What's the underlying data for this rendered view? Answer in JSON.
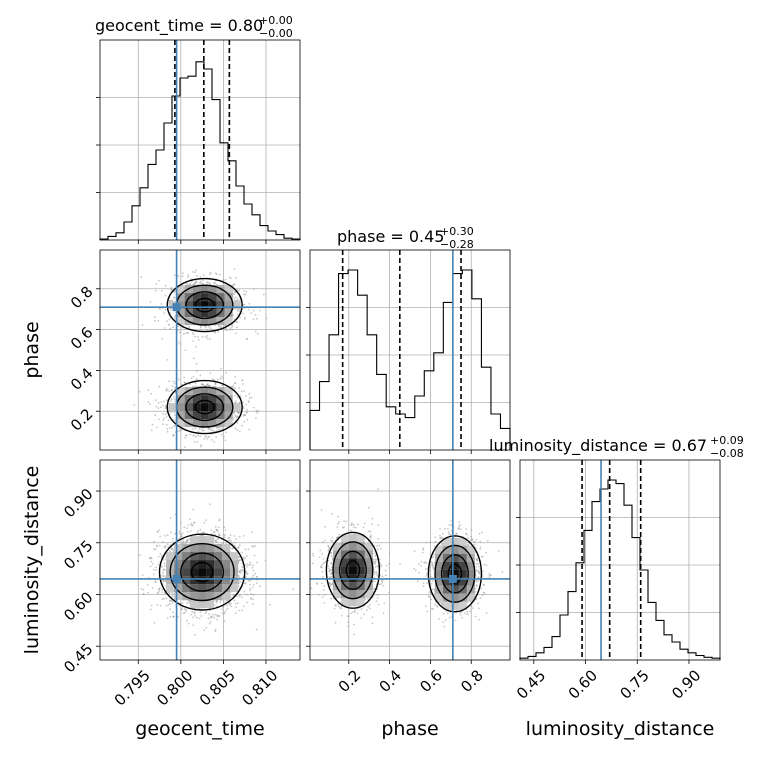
{
  "chart_data": {
    "type": "corner",
    "parameters": [
      "geocent_time",
      "phase",
      "luminosity_distance"
    ],
    "truth": {
      "geocent_time": 0.7995,
      "phase": 0.71,
      "luminosity_distance": 0.645
    },
    "titles": [
      {
        "param": "geocent_time",
        "text": "geocent_time = 0.80",
        "sup": "+0.00",
        "sub": "−0.00"
      },
      {
        "param": "phase",
        "text": "phase = 0.45",
        "sup": "+0.30",
        "sub": "−0.28"
      },
      {
        "param": "luminosity_distance",
        "text": "luminosity_distance = 0.67",
        "sup": "+0.09",
        "sub": "−0.08"
      }
    ],
    "axes": {
      "geocent_time": {
        "range": [
          0.7905,
          0.814
        ],
        "ticks": [
          0.795,
          0.8,
          0.805,
          0.81
        ],
        "tick_labels": [
          "0.795",
          "0.800",
          "0.805",
          "0.810"
        ]
      },
      "phase": {
        "range": [
          0.01,
          0.99
        ],
        "ticks": [
          0.2,
          0.4,
          0.6,
          0.8
        ],
        "tick_labels": [
          "0.2",
          "0.4",
          "0.6",
          "0.8"
        ]
      },
      "luminosity_distance": {
        "range": [
          0.41,
          0.99
        ],
        "ticks": [
          0.45,
          0.6,
          0.75,
          0.9
        ],
        "tick_labels": [
          "0.45",
          "0.60",
          "0.75",
          "0.90"
        ]
      }
    },
    "quantiles": {
      "geocent_time": [
        0.7993,
        0.8027,
        0.8057
      ],
      "phase": [
        0.17,
        0.45,
        0.75
      ],
      "luminosity_distance": [
        0.59,
        0.67,
        0.76
      ]
    },
    "histograms": {
      "geocent_time": [
        0.005,
        0.02,
        0.04,
        0.1,
        0.19,
        0.29,
        0.42,
        0.5,
        0.65,
        0.8,
        0.9,
        0.91,
        0.99,
        0.95,
        0.78,
        0.54,
        0.44,
        0.3,
        0.2,
        0.14,
        0.08,
        0.05,
        0.03,
        0.01,
        0.005
      ],
      "phase": [
        0.22,
        0.38,
        0.64,
        0.98,
        1.0,
        0.86,
        0.64,
        0.42,
        0.24,
        0.2,
        0.18,
        0.3,
        0.44,
        0.54,
        0.82,
        0.98,
        1.0,
        0.84,
        0.46,
        0.2,
        0.12
      ],
      "luminosity_distance": [
        0.01,
        0.02,
        0.04,
        0.07,
        0.13,
        0.25,
        0.38,
        0.54,
        0.72,
        0.88,
        0.95,
        1.0,
        0.98,
        0.86,
        0.68,
        0.5,
        0.32,
        0.22,
        0.14,
        0.1,
        0.06,
        0.04,
        0.025,
        0.015,
        0.01
      ]
    },
    "mode_centers": {
      "geocent_time_phase": [
        [
          0.8028,
          0.72
        ],
        [
          0.8028,
          0.22
        ]
      ],
      "geocent_time_luminosity_distance": [
        [
          0.8025,
          0.665
        ]
      ],
      "phase_luminosity_distance": [
        [
          0.22,
          0.67
        ],
        [
          0.72,
          0.66
        ]
      ]
    },
    "xlabels": [
      "geocent_time",
      "phase",
      "luminosity_distance"
    ],
    "ylabels": [
      "",
      "phase",
      "luminosity_distance"
    ],
    "grid": true
  }
}
